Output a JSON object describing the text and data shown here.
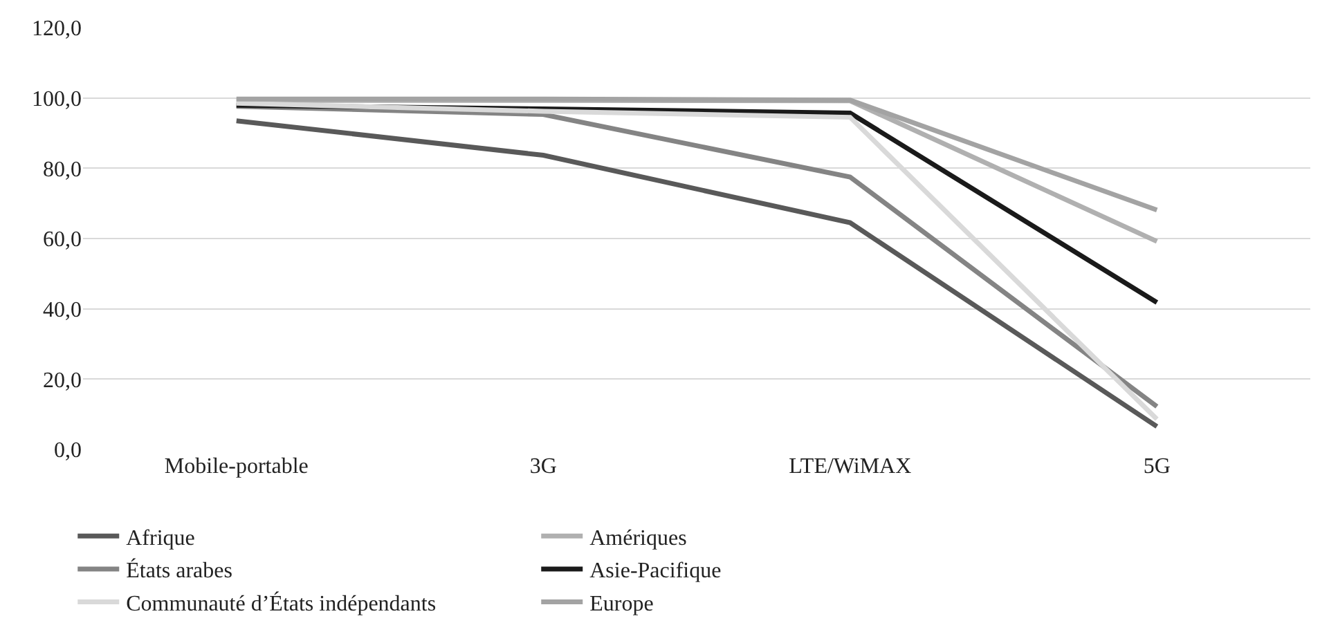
{
  "chart_data": {
    "type": "line",
    "categories": [
      "Mobile-portable",
      "3G",
      "LTE/WiMAX",
      "5G"
    ],
    "series": [
      {
        "name": "Afrique",
        "color": "#595959",
        "values": [
          93.5,
          83.7,
          64.5,
          6.5
        ]
      },
      {
        "name": "Amériques",
        "color": "#b0b0b0",
        "values": [
          99.3,
          99.3,
          99.2,
          59.2
        ]
      },
      {
        "name": "États arabes",
        "color": "#848484",
        "values": [
          97.6,
          95.3,
          77.5,
          12.2
        ]
      },
      {
        "name": "Asie-Pacifique",
        "color": "#1a1a1a",
        "values": [
          97.9,
          96.9,
          95.7,
          41.8
        ]
      },
      {
        "name": "Communauté d’États indépendants",
        "color": "#d9d9d9",
        "values": [
          98.5,
          96.2,
          94.5,
          8.6
        ]
      },
      {
        "name": "Europe",
        "color": "#a3a3a3",
        "values": [
          99.7,
          99.7,
          99.4,
          68.1
        ]
      }
    ],
    "ylim": [
      0,
      120
    ],
    "yticks": [
      {
        "value": 0,
        "label": "0,0"
      },
      {
        "value": 20,
        "label": "20,0"
      },
      {
        "value": 40,
        "label": "40,0"
      },
      {
        "value": 60,
        "label": "60,0"
      },
      {
        "value": 80,
        "label": "80,0"
      },
      {
        "value": 100,
        "label": "100,0"
      },
      {
        "value": 120,
        "label": "120,0"
      }
    ],
    "grid": "y",
    "legend": "bottom",
    "marker": "none",
    "line_style": "solid"
  }
}
